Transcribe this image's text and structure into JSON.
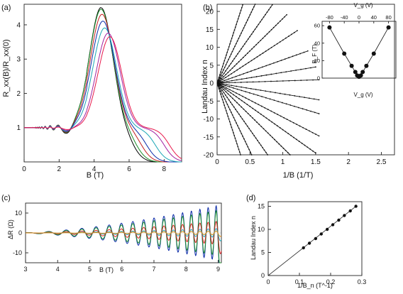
{
  "chart_data": [
    {
      "id": "a",
      "panel_label": "(a)",
      "type": "line",
      "xlabel": "B (T)",
      "ylabel": "R_xx(B)/R_xx(0)",
      "xlim": [
        0,
        9
      ],
      "ylim": [
        0,
        4.6
      ],
      "xticks": [
        0,
        2,
        4,
        6,
        8
      ],
      "yticks": [
        1,
        2,
        3,
        4
      ],
      "series": [
        {
          "color": "#000000",
          "peak_B": 4.4,
          "peak": 4.5,
          "osc": 0.07,
          "decay": 6.2
        },
        {
          "color": "#1b8f2a",
          "peak_B": 4.4,
          "peak": 4.45,
          "osc": 0.065,
          "decay": 6.4
        },
        {
          "color": "#c51f1f",
          "peak_B": 4.45,
          "peak": 4.3,
          "osc": 0.06,
          "decay": 6.7
        },
        {
          "color": "#0a2aa8",
          "peak_B": 4.5,
          "peak": 4.1,
          "osc": 0.05,
          "decay": 7.0
        },
        {
          "color": "#1aa6b5",
          "peak_B": 4.6,
          "peak": 3.9,
          "osc": 0.04,
          "decay": 7.5
        },
        {
          "color": "#a020a0",
          "peak_B": 4.8,
          "peak": 3.75,
          "osc": 0.025,
          "decay": 8.0
        },
        {
          "color": "#e8174a",
          "peak_B": 4.9,
          "peak": 3.65,
          "osc": 0.015,
          "decay": 8.3
        }
      ]
    },
    {
      "id": "b",
      "panel_label": "(b)",
      "type": "line",
      "xlabel": "1/B (1/T)",
      "ylabel": "Landau Index n",
      "xlim": [
        0,
        2.7
      ],
      "ylim": [
        -20,
        22
      ],
      "xticks": [
        0,
        0.5,
        1,
        1.5,
        2,
        2.5
      ],
      "xtick_labels": [
        "0",
        "0.5",
        "1",
        "1.5",
        "2",
        "2.5"
      ],
      "yticks": [
        -20,
        -15,
        -10,
        -5,
        0,
        5,
        10,
        15,
        20
      ],
      "line_slopes": [
        56,
        38,
        26,
        18,
        12,
        6.5,
        3,
        0.6,
        -3,
        -5.5,
        -9.5,
        -13,
        -18,
        -26,
        -38,
        -56
      ],
      "line_xmax": [
        0.39,
        0.58,
        0.84,
        1.06,
        1.22,
        1.38,
        1.5,
        1.55,
        1.55,
        1.55,
        1.55,
        1.5,
        1.42,
        1.22,
        0.6,
        0.36
      ],
      "inset": {
        "type": "scatter",
        "xlabel": "V_g (V)",
        "xlabel_bottom": "V_g (V)",
        "ylabel": "B_F (T)",
        "xlim": [
          -100,
          100
        ],
        "ylim": [
          0,
          65
        ],
        "xticks": [
          -80,
          -40,
          0,
          40,
          80
        ],
        "yticks": [
          0,
          20,
          40,
          60
        ],
        "x": [
          -80,
          -40,
          -20,
          -10,
          -5,
          0,
          5,
          10,
          20,
          40,
          80
        ],
        "y": [
          58,
          28,
          14,
          7,
          3,
          1.5,
          3,
          7,
          14,
          28,
          58
        ]
      }
    },
    {
      "id": "c",
      "panel_label": "(c)",
      "type": "line",
      "xlabel": "B (T)",
      "ylabel": "ΔR (Ω)",
      "xlim": [
        3,
        9.1
      ],
      "ylim": [
        -15,
        15
      ],
      "xticks": [
        3,
        4,
        5,
        6,
        7,
        8,
        9
      ],
      "yticks": [
        -10,
        0,
        10
      ],
      "series": [
        {
          "color": "#0a2aa8",
          "amp": 1.0
        },
        {
          "color": "#1b8f2a",
          "amp": 0.82
        },
        {
          "color": "#d11f1f",
          "amp": 0.42
        },
        {
          "color": "#1aa6b5",
          "amp": 0.16
        },
        {
          "color": "#e08a10",
          "amp": 0.07
        }
      ]
    },
    {
      "id": "d",
      "panel_label": "(d)",
      "type": "scatter",
      "xlabel": "1/B_n (T^-1)",
      "ylabel": "Landau Index n",
      "xlim": [
        0,
        0.3
      ],
      "ylim": [
        0,
        16
      ],
      "xticks": [
        0,
        0.1,
        0.2,
        0.3
      ],
      "xtick_labels": [
        "0",
        "0.1",
        "0.2",
        "0.3"
      ],
      "yticks": [
        0,
        5,
        10,
        15
      ],
      "x": [
        0.113,
        0.132,
        0.152,
        0.17,
        0.189,
        0.207,
        0.226,
        0.244,
        0.263,
        0.281
      ],
      "y": [
        6,
        7,
        8,
        9,
        10,
        11,
        12,
        13,
        14,
        15
      ],
      "fit_line": {
        "x": [
          0,
          0.283
        ],
        "y": [
          0,
          15.1
        ]
      }
    }
  ]
}
